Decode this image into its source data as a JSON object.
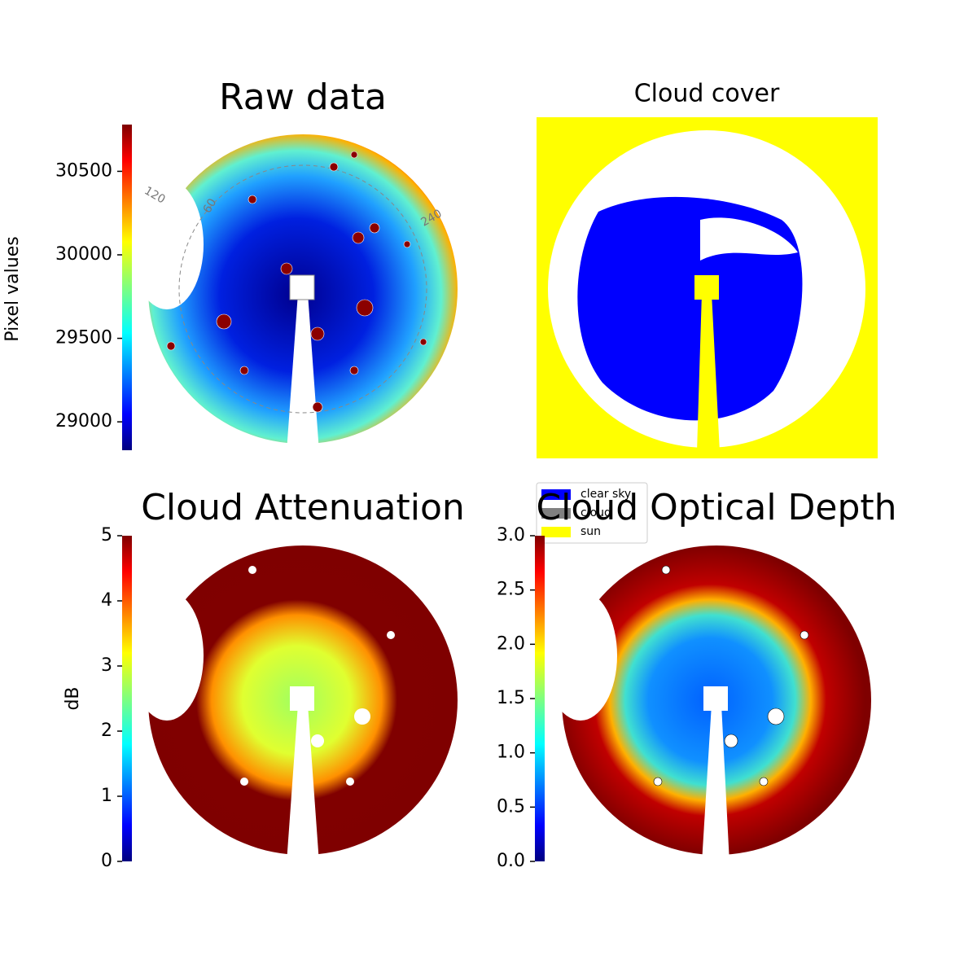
{
  "chart_data": [
    {
      "type": "image",
      "title": "Raw data",
      "colorbar_label": "Pixel values",
      "colormap": "jet",
      "ylim": [
        28830,
        30780
      ],
      "yticks": [
        29000,
        29500,
        30000,
        30500
      ],
      "annotations": [
        "120",
        "60",
        "240"
      ]
    },
    {
      "type": "image",
      "title": "Cloud cover",
      "legend": {
        "labels": [
          "clear sky",
          "cloud",
          "sun"
        ],
        "colors": [
          "#0000ff",
          "#808080",
          "#ffff00"
        ]
      }
    },
    {
      "type": "image",
      "title": "Cloud Attenuation",
      "colorbar_label": "dB",
      "colormap": "jet",
      "ylim": [
        0,
        5
      ],
      "yticks": [
        0,
        1,
        2,
        3,
        4,
        5
      ]
    },
    {
      "type": "image",
      "title": "Cloud Optical Depth",
      "colormap": "jet",
      "ylim": [
        0,
        3
      ],
      "yticks": [
        {
          "value": 0,
          "label": "0.0"
        },
        0.5,
        {
          "value": 1,
          "label": "1.0"
        },
        1.5,
        {
          "value": 2,
          "label": "2.0"
        },
        2.5,
        {
          "value": 3,
          "label": "3.0"
        }
      ]
    }
  ]
}
